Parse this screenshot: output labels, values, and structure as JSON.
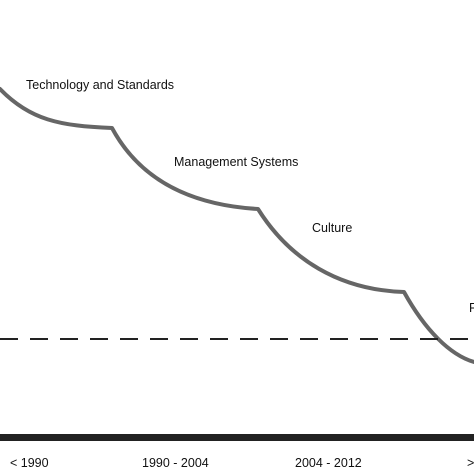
{
  "colors": {
    "curve": "#666666",
    "dashed_line": "#222222",
    "axis": "#222222",
    "text": "#111111"
  },
  "stages": {
    "technology": "Technology and Standards",
    "management": "Management Systems",
    "culture": "Culture",
    "partial_label": "R"
  },
  "time_axis": {
    "periods": [
      "< 1990",
      "1990 - 2004",
      "2004 - 2012",
      ">"
    ]
  }
}
